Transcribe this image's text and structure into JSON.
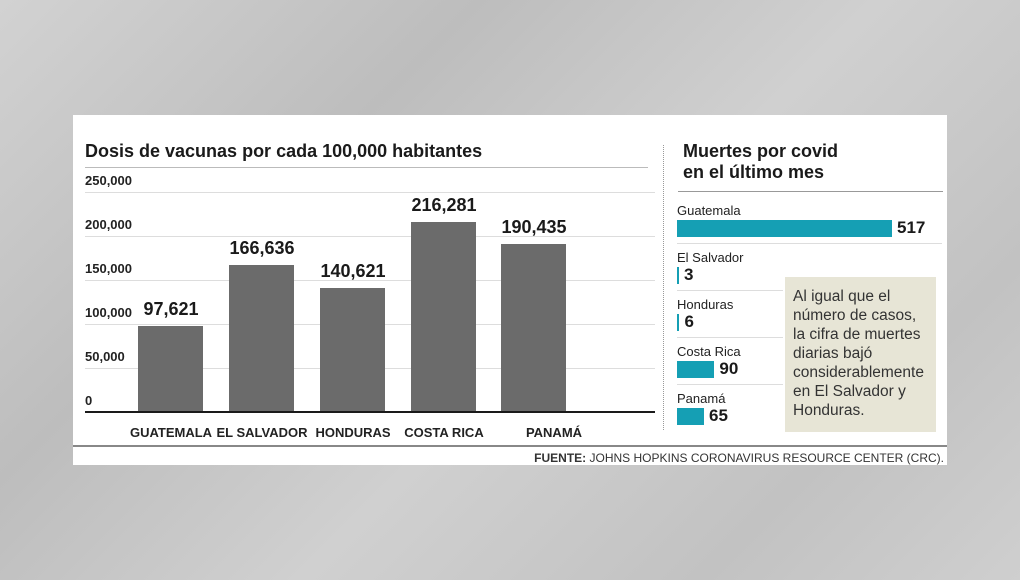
{
  "chart_data": [
    {
      "type": "bar",
      "title": "Dosis de vacunas por cada 100,000 habitantes",
      "categories": [
        "GUATEMALA",
        "EL SALVADOR",
        "HONDURAS",
        "COSTA RICA",
        "PANAMÁ"
      ],
      "values": [
        97621,
        166636,
        140621,
        216281,
        190435
      ],
      "value_labels": [
        "97,621",
        "166,636",
        "140,621",
        "216,281",
        "190,435"
      ],
      "yticks": [
        "250,000",
        "200,000",
        "150,000",
        "100,000",
        "50,000",
        "0"
      ],
      "ylim": [
        0,
        250000
      ],
      "grid": true,
      "color": "#6b6b6b"
    },
    {
      "type": "bar",
      "orientation": "horizontal",
      "title_line1": "Muertes por covid",
      "title_line2": "en el último mes",
      "categories": [
        "Guatemala",
        "El Salvador",
        "Honduras",
        "Costa Rica",
        "Panamá"
      ],
      "values": [
        517,
        3,
        6,
        90,
        65
      ],
      "color": "#159fb4"
    }
  ],
  "note": "Al igual que el número de casos, la cifra de muertes diarias bajó considerablemente en El Salvador y Honduras.",
  "source": {
    "label": "FUENTE:",
    "text": "JOHNS HOPKINS CORONAVIRUS RESOURCE CENTER (CRC)."
  }
}
